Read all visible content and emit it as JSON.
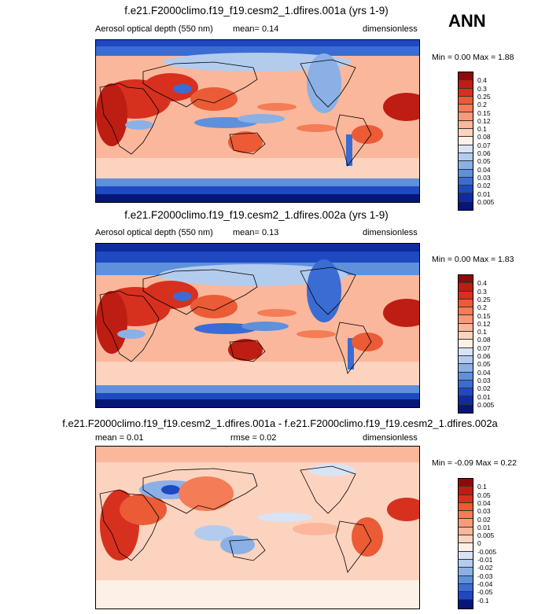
{
  "season": "ANN",
  "panels": [
    {
      "title": "f.e21.F2000climo.f19_f19.cesm2_1.dfires.001a (yrs 1-9)",
      "left_label": "Aerosol optical depth (550 nm)",
      "center_label": "mean=  0.14",
      "right_label": "dimensionless",
      "minmax": "Min =  0.00 Max =  1.88"
    },
    {
      "title": "f.e21.F2000climo.f19_f19.cesm2_1.dfires.002a (yrs 1-9)",
      "left_label": "Aerosol optical depth (550 nm)",
      "center_label": "mean=  0.13",
      "right_label": "dimensionless",
      "minmax": "Min =  0.00 Max =  1.83"
    },
    {
      "title": "f.e21.F2000climo.f19_f19.cesm2_1.dfires.001a - f.e21.F2000climo.f19_f19.cesm2_1.dfires.002a",
      "left_label": "mean =  0.01",
      "center_label": "rmse =  0.02",
      "right_label": "dimensionless",
      "minmax": "Min = -0.09 Max =  0.22"
    }
  ],
  "chart_data": [
    {
      "type": "heatmap",
      "title": "f.e21.F2000climo.f19_f19.cesm2_1.dfires.001a (yrs 1-9)",
      "variable": "Aerosol optical depth (550 nm)",
      "units": "dimensionless",
      "mean": 0.14,
      "min": 0.0,
      "max": 1.88,
      "colorbar_levels": [
        "0.4",
        "0.3",
        "0.25",
        "0.2",
        "0.15",
        "0.12",
        "0.1",
        "0.08",
        "0.07",
        "0.06",
        "0.05",
        "0.04",
        "0.03",
        "0.02",
        "0.01",
        "0.005"
      ],
      "colorbar_colors": [
        "#8e0a0a",
        "#bd1d12",
        "#d7301f",
        "#ea5b36",
        "#f47c56",
        "#f89a78",
        "#fbb79b",
        "#fcd3bf",
        "#fdf0e6",
        "#d8e4f5",
        "#b3ccee",
        "#8ab0e6",
        "#5e90dc",
        "#3a6cd3",
        "#1f49c1",
        "#0f2ba0",
        "#061678"
      ]
    },
    {
      "type": "heatmap",
      "title": "f.e21.F2000climo.f19_f19.cesm2_1.dfires.002a (yrs 1-9)",
      "variable": "Aerosol optical depth (550 nm)",
      "units": "dimensionless",
      "mean": 0.13,
      "min": 0.0,
      "max": 1.83,
      "colorbar_levels": [
        "0.4",
        "0.3",
        "0.25",
        "0.2",
        "0.15",
        "0.12",
        "0.1",
        "0.08",
        "0.07",
        "0.06",
        "0.05",
        "0.04",
        "0.03",
        "0.02",
        "0.01",
        "0.005"
      ],
      "colorbar_colors": [
        "#8e0a0a",
        "#bd1d12",
        "#d7301f",
        "#ea5b36",
        "#f47c56",
        "#f89a78",
        "#fbb79b",
        "#fcd3bf",
        "#fdf0e6",
        "#d8e4f5",
        "#b3ccee",
        "#8ab0e6",
        "#5e90dc",
        "#3a6cd3",
        "#1f49c1",
        "#0f2ba0",
        "#061678"
      ]
    },
    {
      "type": "heatmap",
      "title": "f.e21.F2000climo.f19_f19.cesm2_1.dfires.001a - f.e21.F2000climo.f19_f19.cesm2_1.dfires.002a",
      "units": "dimensionless",
      "mean": 0.01,
      "rmse": 0.02,
      "min": -0.09,
      "max": 0.22,
      "colorbar_levels": [
        "0.1",
        "0.05",
        "0.04",
        "0.03",
        "0.02",
        "0.01",
        "0.005",
        "0",
        "-0.005",
        "-0.01",
        "-0.02",
        "-0.03",
        "-0.04",
        "-0.05",
        "-0.1"
      ],
      "colorbar_colors": [
        "#8e0a0a",
        "#bd1d12",
        "#d7301f",
        "#ea5b36",
        "#f47c56",
        "#f89a78",
        "#fbb79b",
        "#fcd3bf",
        "#fdf0e6",
        "#d8e4f5",
        "#b3ccee",
        "#8ab0e6",
        "#5e90dc",
        "#3a6cd3",
        "#1f49c1",
        "#061678"
      ]
    }
  ]
}
